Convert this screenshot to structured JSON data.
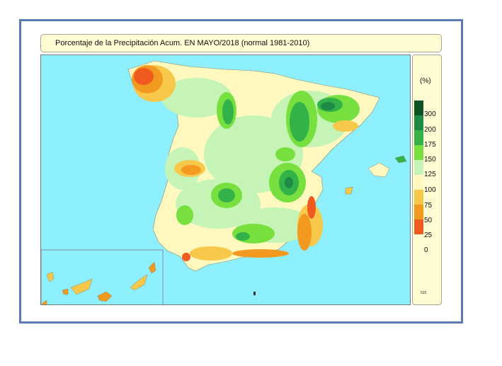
{
  "title": "Porcentaje de la Precipitación Acum. EN  MAYO/2018  (normal 1981-2010)",
  "legend": {
    "unit": "(%)",
    "items": [
      {
        "label": "300",
        "color": "#0b5124"
      },
      {
        "label": "200",
        "color": "#1f8a45"
      },
      {
        "label": "175",
        "color": "#33b24a"
      },
      {
        "label": "150",
        "color": "#77e03f"
      },
      {
        "label": "125",
        "color": "#c6f4b6"
      },
      {
        "label": "100",
        "color": "#fff9c0"
      },
      {
        "label": "75",
        "color": "#f7c84a"
      },
      {
        "label": "50",
        "color": "#f29a1f"
      },
      {
        "label": "25",
        "color": "#ef5a1e"
      },
      {
        "label": "0",
        "color": "#ffffff"
      }
    ],
    "code": "526"
  },
  "colors": {
    "sea": "#8eefff",
    "frame_border": "#5b7bb6",
    "panel_background": "#fffbd3"
  }
}
